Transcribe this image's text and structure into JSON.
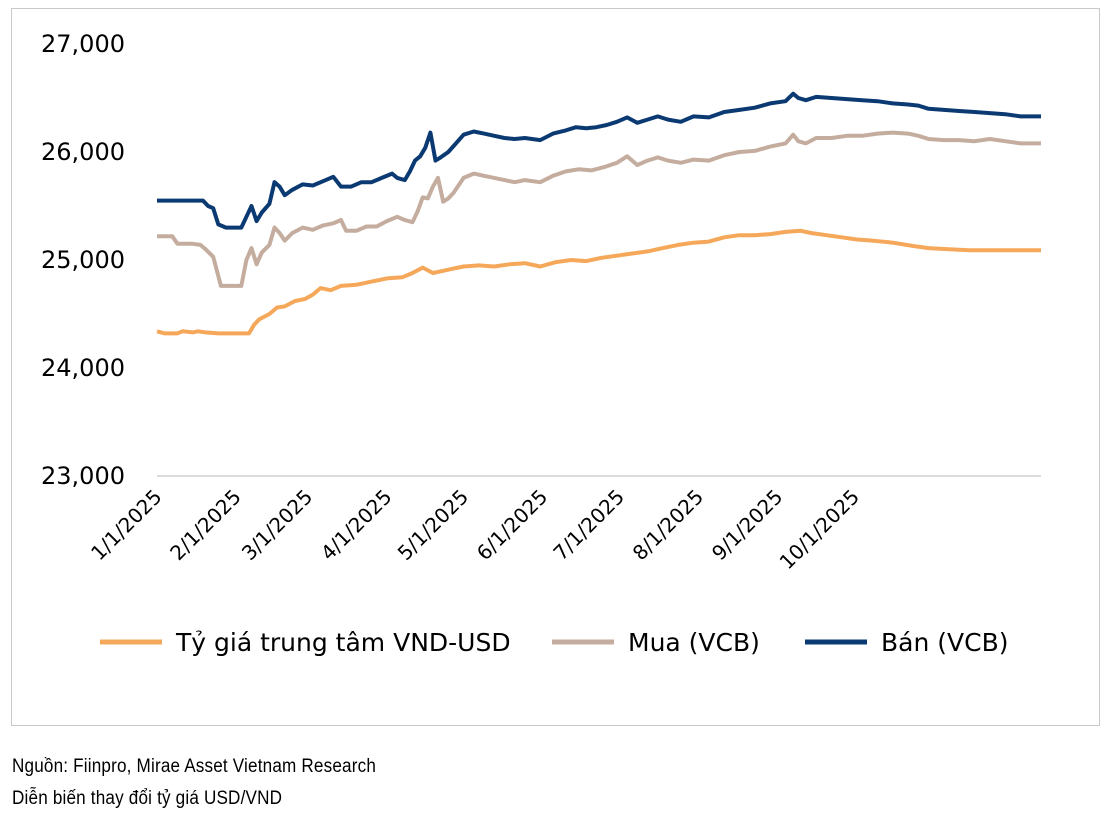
{
  "chart_data": {
    "type": "line",
    "title": "",
    "xlabel": "",
    "ylabel": "",
    "ylim": [
      23000,
      27000
    ],
    "yticks": [
      23000,
      24000,
      25000,
      26000,
      27000
    ],
    "ytick_labels": [
      "23,000",
      "24,000",
      "25,000",
      "26,000",
      "27,000"
    ],
    "xlim": [
      0,
      346
    ],
    "xticks": [
      0,
      31,
      59,
      90,
      120,
      151,
      181,
      212,
      243,
      273
    ],
    "xtick_labels": [
      "1/1/2025",
      "2/1/2025",
      "3/1/2025",
      "4/1/2025",
      "5/1/2025",
      "6/1/2025",
      "7/1/2025",
      "8/1/2025",
      "9/1/2025",
      "10/1/2025"
    ],
    "x_unit": "days since 1/1/2025",
    "grid": false,
    "legend_position": "bottom",
    "series": [
      {
        "name": "Tỷ giá trung tâm VND-USD",
        "color": "#F5A85A",
        "points": [
          [
            0,
            24340
          ],
          [
            3,
            24320
          ],
          [
            8,
            24320
          ],
          [
            10,
            24340
          ],
          [
            14,
            24330
          ],
          [
            16,
            24340
          ],
          [
            19,
            24330
          ],
          [
            24,
            24320
          ],
          [
            30,
            24320
          ],
          [
            36,
            24320
          ],
          [
            38,
            24400
          ],
          [
            40,
            24450
          ],
          [
            44,
            24500
          ],
          [
            47,
            24560
          ],
          [
            50,
            24570
          ],
          [
            54,
            24620
          ],
          [
            58,
            24640
          ],
          [
            61,
            24680
          ],
          [
            64,
            24740
          ],
          [
            68,
            24720
          ],
          [
            72,
            24760
          ],
          [
            78,
            24770
          ],
          [
            84,
            24800
          ],
          [
            90,
            24830
          ],
          [
            96,
            24840
          ],
          [
            100,
            24880
          ],
          [
            104,
            24930
          ],
          [
            108,
            24880
          ],
          [
            112,
            24900
          ],
          [
            116,
            24920
          ],
          [
            120,
            24940
          ],
          [
            126,
            24950
          ],
          [
            132,
            24940
          ],
          [
            138,
            24960
          ],
          [
            144,
            24970
          ],
          [
            150,
            24940
          ],
          [
            156,
            24980
          ],
          [
            162,
            25000
          ],
          [
            168,
            24990
          ],
          [
            174,
            25020
          ],
          [
            180,
            25040
          ],
          [
            186,
            25060
          ],
          [
            192,
            25080
          ],
          [
            198,
            25110
          ],
          [
            204,
            25140
          ],
          [
            210,
            25160
          ],
          [
            216,
            25170
          ],
          [
            222,
            25210
          ],
          [
            228,
            25230
          ],
          [
            234,
            25230
          ],
          [
            240,
            25240
          ],
          [
            246,
            25260
          ],
          [
            252,
            25270
          ],
          [
            256,
            25250
          ],
          [
            262,
            25230
          ],
          [
            268,
            25210
          ],
          [
            274,
            25190
          ],
          [
            280,
            25180
          ],
          [
            288,
            25160
          ],
          [
            296,
            25130
          ],
          [
            302,
            25110
          ],
          [
            310,
            25100
          ],
          [
            318,
            25090
          ],
          [
            326,
            25090
          ],
          [
            334,
            25090
          ],
          [
            346,
            25090
          ]
        ]
      },
      {
        "name": "Mua (VCB)",
        "color": "#C4AD9E",
        "points": [
          [
            0,
            25220
          ],
          [
            6,
            25220
          ],
          [
            8,
            25150
          ],
          [
            14,
            25150
          ],
          [
            17,
            25140
          ],
          [
            19,
            25100
          ],
          [
            22,
            25030
          ],
          [
            25,
            24760
          ],
          [
            28,
            24760
          ],
          [
            33,
            24760
          ],
          [
            35,
            25000
          ],
          [
            37,
            25110
          ],
          [
            39,
            24960
          ],
          [
            41,
            25070
          ],
          [
            44,
            25140
          ],
          [
            46,
            25300
          ],
          [
            48,
            25250
          ],
          [
            50,
            25180
          ],
          [
            53,
            25250
          ],
          [
            57,
            25300
          ],
          [
            61,
            25280
          ],
          [
            65,
            25320
          ],
          [
            69,
            25340
          ],
          [
            72,
            25370
          ],
          [
            74,
            25270
          ],
          [
            78,
            25270
          ],
          [
            82,
            25310
          ],
          [
            86,
            25310
          ],
          [
            90,
            25360
          ],
          [
            94,
            25400
          ],
          [
            97,
            25370
          ],
          [
            100,
            25350
          ],
          [
            102,
            25450
          ],
          [
            104,
            25580
          ],
          [
            106,
            25570
          ],
          [
            108,
            25680
          ],
          [
            110,
            25760
          ],
          [
            112,
            25540
          ],
          [
            114,
            25570
          ],
          [
            116,
            25620
          ],
          [
            118,
            25690
          ],
          [
            120,
            25760
          ],
          [
            124,
            25800
          ],
          [
            128,
            25780
          ],
          [
            132,
            25760
          ],
          [
            136,
            25740
          ],
          [
            140,
            25720
          ],
          [
            144,
            25740
          ],
          [
            150,
            25720
          ],
          [
            155,
            25780
          ],
          [
            160,
            25820
          ],
          [
            165,
            25840
          ],
          [
            170,
            25830
          ],
          [
            175,
            25860
          ],
          [
            180,
            25900
          ],
          [
            184,
            25960
          ],
          [
            188,
            25880
          ],
          [
            192,
            25920
          ],
          [
            196,
            25950
          ],
          [
            200,
            25920
          ],
          [
            205,
            25900
          ],
          [
            210,
            25930
          ],
          [
            216,
            25920
          ],
          [
            222,
            25970
          ],
          [
            228,
            26000
          ],
          [
            234,
            26010
          ],
          [
            240,
            26050
          ],
          [
            246,
            26080
          ],
          [
            249,
            26160
          ],
          [
            251,
            26100
          ],
          [
            254,
            26080
          ],
          [
            258,
            26130
          ],
          [
            264,
            26130
          ],
          [
            270,
            26150
          ],
          [
            276,
            26150
          ],
          [
            282,
            26170
          ],
          [
            288,
            26180
          ],
          [
            294,
            26170
          ],
          [
            298,
            26150
          ],
          [
            302,
            26120
          ],
          [
            308,
            26110
          ],
          [
            314,
            26110
          ],
          [
            320,
            26100
          ],
          [
            326,
            26120
          ],
          [
            332,
            26100
          ],
          [
            338,
            26080
          ],
          [
            346,
            26080
          ]
        ]
      },
      {
        "name": "Bán (VCB)",
        "color": "#0B3A73",
        "points": [
          [
            0,
            25550
          ],
          [
            6,
            25550
          ],
          [
            10,
            25550
          ],
          [
            14,
            25550
          ],
          [
            18,
            25550
          ],
          [
            20,
            25500
          ],
          [
            22,
            25480
          ],
          [
            24,
            25330
          ],
          [
            27,
            25300
          ],
          [
            30,
            25300
          ],
          [
            33,
            25300
          ],
          [
            35,
            25400
          ],
          [
            37,
            25500
          ],
          [
            39,
            25360
          ],
          [
            41,
            25440
          ],
          [
            44,
            25520
          ],
          [
            46,
            25720
          ],
          [
            48,
            25680
          ],
          [
            50,
            25600
          ],
          [
            53,
            25650
          ],
          [
            57,
            25700
          ],
          [
            61,
            25690
          ],
          [
            65,
            25730
          ],
          [
            69,
            25770
          ],
          [
            72,
            25680
          ],
          [
            76,
            25680
          ],
          [
            80,
            25720
          ],
          [
            84,
            25720
          ],
          [
            88,
            25760
          ],
          [
            92,
            25800
          ],
          [
            94,
            25760
          ],
          [
            97,
            25740
          ],
          [
            99,
            25820
          ],
          [
            101,
            25920
          ],
          [
            103,
            25960
          ],
          [
            105,
            26040
          ],
          [
            107,
            26180
          ],
          [
            109,
            25920
          ],
          [
            111,
            25950
          ],
          [
            114,
            26000
          ],
          [
            117,
            26080
          ],
          [
            120,
            26160
          ],
          [
            124,
            26190
          ],
          [
            128,
            26170
          ],
          [
            132,
            26150
          ],
          [
            136,
            26130
          ],
          [
            140,
            26120
          ],
          [
            144,
            26130
          ],
          [
            150,
            26110
          ],
          [
            155,
            26170
          ],
          [
            160,
            26200
          ],
          [
            164,
            26230
          ],
          [
            168,
            26220
          ],
          [
            172,
            26230
          ],
          [
            176,
            26250
          ],
          [
            180,
            26280
          ],
          [
            184,
            26320
          ],
          [
            188,
            26270
          ],
          [
            192,
            26300
          ],
          [
            196,
            26330
          ],
          [
            200,
            26300
          ],
          [
            205,
            26280
          ],
          [
            210,
            26330
          ],
          [
            216,
            26320
          ],
          [
            222,
            26370
          ],
          [
            228,
            26390
          ],
          [
            234,
            26410
          ],
          [
            240,
            26450
          ],
          [
            246,
            26470
          ],
          [
            249,
            26540
          ],
          [
            251,
            26500
          ],
          [
            254,
            26480
          ],
          [
            258,
            26510
          ],
          [
            264,
            26500
          ],
          [
            270,
            26490
          ],
          [
            276,
            26480
          ],
          [
            282,
            26470
          ],
          [
            288,
            26450
          ],
          [
            294,
            26440
          ],
          [
            298,
            26430
          ],
          [
            302,
            26400
          ],
          [
            308,
            26390
          ],
          [
            314,
            26380
          ],
          [
            320,
            26370
          ],
          [
            326,
            26360
          ],
          [
            332,
            26350
          ],
          [
            338,
            26330
          ],
          [
            346,
            26330
          ]
        ]
      }
    ]
  },
  "footer": {
    "source": "Nguồn: Fiinpro, Mirae Asset Vietnam Research",
    "caption": "Diễn biến thay đổi tỷ giá USD/VND"
  }
}
